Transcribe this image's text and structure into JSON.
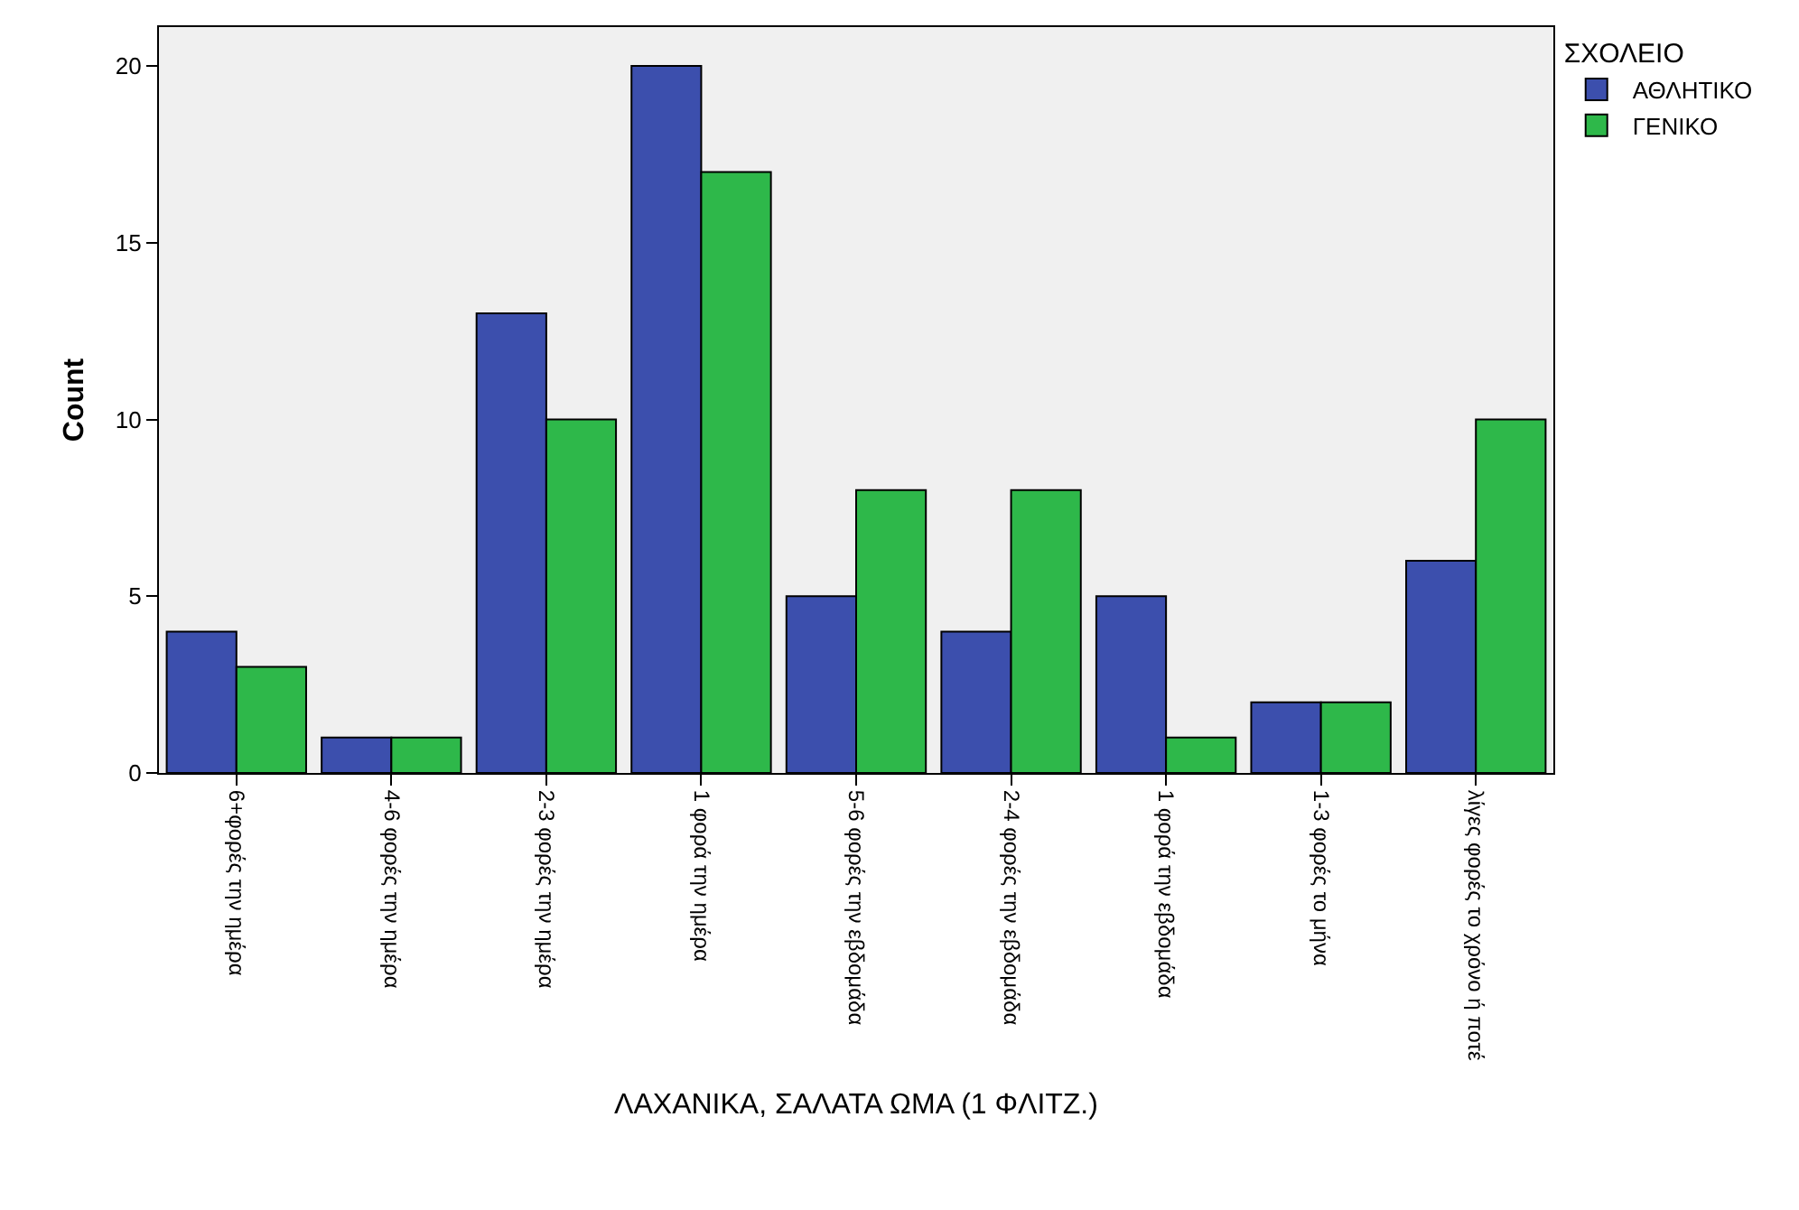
{
  "chart_data": {
    "type": "bar",
    "xlabel": "ΛΑΧΑΝΙΚΑ, ΣΑΛΑΤΑ ΩΜΑ (1 ΦΛΙΤΖ.)",
    "ylabel": "Count",
    "legend_title": "ΣΧΟΛΕΙΟ",
    "categories": [
      "6+φορές την ημέρα",
      "4-6 φορές την ημέρα",
      "2-3 φορές την ημέρα",
      "1 φορά την ημέρα",
      "5-6 φορές την εβδομάδα",
      "2-4 φορές την εβδομάδα",
      "1 φορά την εβδομάδα",
      "1-3 φορές το μήνα",
      "λίγες φορές το χρόνο ή ποτέ"
    ],
    "series": [
      {
        "name": "ΑΘΛΗΤΙΚΟ",
        "color": "#3c4fad",
        "values": [
          4,
          1,
          13,
          20,
          5,
          4,
          5,
          2,
          6
        ]
      },
      {
        "name": "ΓΕΝΙΚΟ",
        "color": "#2eb84a",
        "values": [
          3,
          1,
          10,
          17,
          8,
          8,
          1,
          2,
          10
        ]
      }
    ],
    "ylim": [
      0,
      21.1
    ],
    "yticks": [
      0,
      5,
      10,
      15,
      20
    ],
    "grid": false,
    "legend": "top right"
  }
}
